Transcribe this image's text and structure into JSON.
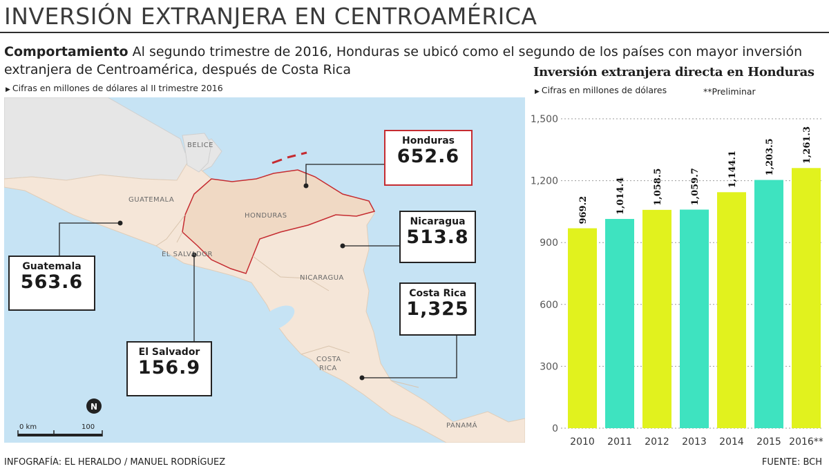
{
  "header": {
    "title": "INVERSIÓN EXTRANJERA EN CENTROAMÉRICA",
    "lede_bold": "Comportamiento",
    "lede_text": "Al segundo trimestre de 2016, Honduras se ubicó como el segundo de los países con mayor inversión extranjera de Centroamérica, después de Costa Rica",
    "note": "Cifras en millones de dólares al II trimestre 2016"
  },
  "map": {
    "country_labels": {
      "belice": "BELICE",
      "guatemala": "GUATEMALA",
      "el_salvador": "EL SALVADOR",
      "honduras": "HONDURAS",
      "nicaragua": "NICARAGUA",
      "costa_rica_1": "COSTA",
      "costa_rica_2": "RICA",
      "panama": "PANAMÁ"
    },
    "callouts": {
      "honduras": {
        "name": "Honduras",
        "value": "652.6"
      },
      "nicaragua": {
        "name": "Nicaragua",
        "value": "513.8"
      },
      "guatemala": {
        "name": "Guatemala",
        "value": "563.6"
      },
      "costa_rica": {
        "name": "Costa Rica",
        "value": "1,325"
      },
      "el_salvador": {
        "name": "El Salvador",
        "value": "156.9"
      }
    },
    "north": "N",
    "scale_start": "0 km",
    "scale_end": "100",
    "colors": {
      "sea": "#c6e3f4",
      "land": "#f5e6d8",
      "honduras": "#f0d9c4",
      "neighbor": "#e6e6e6",
      "highlight": "#c52b30"
    }
  },
  "chart_data": {
    "type": "bar",
    "title": "Inversión extranjera directa en Honduras",
    "subtitle": "Cifras en millones de dólares",
    "note": "**Preliminar",
    "categories": [
      "2010",
      "2011",
      "2012",
      "2013",
      "2014",
      "2015",
      "2016**"
    ],
    "values": [
      969.2,
      1014.4,
      1058.5,
      1059.7,
      1144.1,
      1203.5,
      1261.3
    ],
    "value_labels": [
      "969.2",
      "1,014.4",
      "1,058.5",
      "1,059.7",
      "1,144.1",
      "1,203.5",
      "1,261.3"
    ],
    "colors": [
      "#e1f21e",
      "#3ee3c0",
      "#e1f21e",
      "#3ee3c0",
      "#e1f21e",
      "#3ee3c0",
      "#e1f21e"
    ],
    "ylim": [
      0,
      1500
    ],
    "yticks": [
      0,
      300,
      600,
      900,
      1200,
      1500
    ],
    "ytick_labels": [
      "0",
      "300",
      "600",
      "900",
      "1,200",
      "1,500"
    ],
    "grid": true
  },
  "footer": {
    "credit": "INFOGRAFÍA: EL HERALDO / MANUEL RODRÍGUEZ",
    "source": "FUENTE: BCH"
  }
}
